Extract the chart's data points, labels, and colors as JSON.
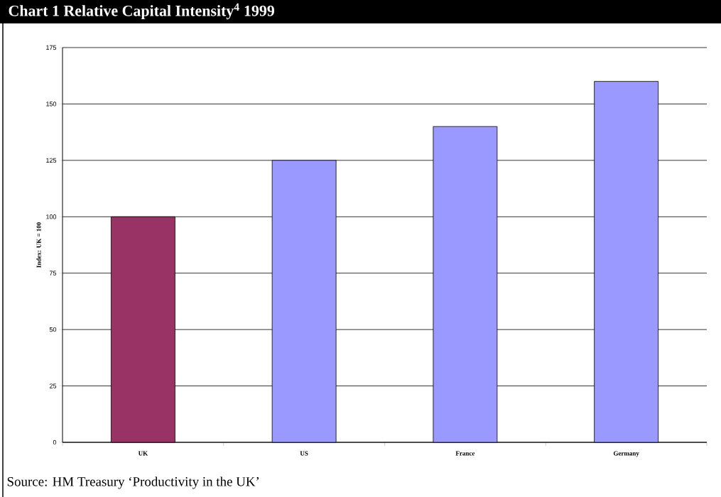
{
  "chart_data": {
    "type": "bar",
    "title": "Chart 1 Relative Capital Intensity$^{4}$ 1999",
    "ylabel": "Index: UK = 100",
    "categories": [
      "UK",
      "US",
      "France",
      "Germany"
    ],
    "values": [
      100,
      125,
      140,
      160
    ],
    "colors": [
      "#993366",
      "#9999ff",
      "#9999ff",
      "#9999ff"
    ],
    "ylim": [
      0,
      175
    ],
    "yticks": [
      0,
      25,
      50,
      75,
      100,
      125,
      150,
      175
    ],
    "grid": "y",
    "annotations": [
      "Source: HM Treasury ‘Productivity in the UK’"
    ]
  }
}
